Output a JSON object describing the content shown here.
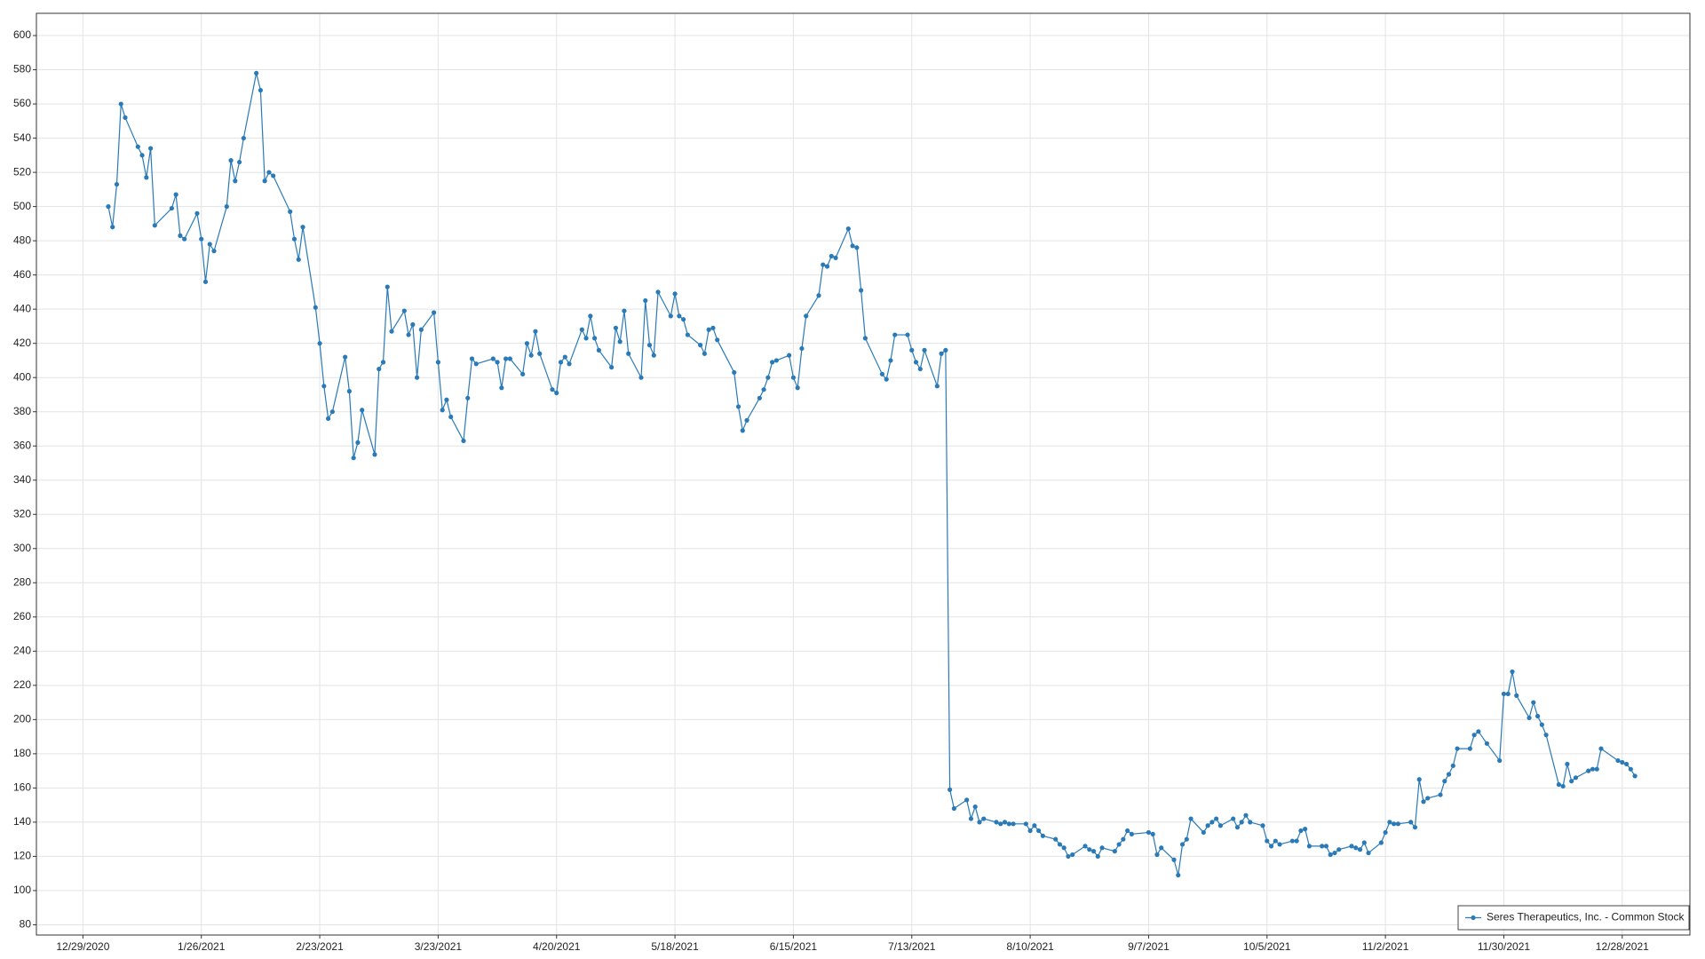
{
  "chart_data": {
    "type": "line",
    "x": [
      "2021-01-04",
      "2021-01-05",
      "2021-01-06",
      "2021-01-07",
      "2021-01-08",
      "2021-01-11",
      "2021-01-12",
      "2021-01-13",
      "2021-01-14",
      "2021-01-15",
      "2021-01-19",
      "2021-01-20",
      "2021-01-21",
      "2021-01-22",
      "2021-01-25",
      "2021-01-26",
      "2021-01-27",
      "2021-01-28",
      "2021-01-29",
      "2021-02-01",
      "2021-02-02",
      "2021-02-03",
      "2021-02-04",
      "2021-02-05",
      "2021-02-08",
      "2021-02-09",
      "2021-02-10",
      "2021-02-11",
      "2021-02-12",
      "2021-02-16",
      "2021-02-17",
      "2021-02-18",
      "2021-02-19",
      "2021-02-22",
      "2021-02-23",
      "2021-02-24",
      "2021-02-25",
      "2021-02-26",
      "2021-03-01",
      "2021-03-02",
      "2021-03-03",
      "2021-03-04",
      "2021-03-05",
      "2021-03-08",
      "2021-03-09",
      "2021-03-10",
      "2021-03-11",
      "2021-03-12",
      "2021-03-15",
      "2021-03-16",
      "2021-03-17",
      "2021-03-18",
      "2021-03-19",
      "2021-03-22",
      "2021-03-23",
      "2021-03-24",
      "2021-03-25",
      "2021-03-26",
      "2021-03-29",
      "2021-03-30",
      "2021-03-31",
      "2021-04-01",
      "2021-04-05",
      "2021-04-06",
      "2021-04-07",
      "2021-04-08",
      "2021-04-09",
      "2021-04-12",
      "2021-04-13",
      "2021-04-14",
      "2021-04-15",
      "2021-04-16",
      "2021-04-19",
      "2021-04-20",
      "2021-04-21",
      "2021-04-22",
      "2021-04-23",
      "2021-04-26",
      "2021-04-27",
      "2021-04-28",
      "2021-04-29",
      "2021-04-30",
      "2021-05-03",
      "2021-05-04",
      "2021-05-05",
      "2021-05-06",
      "2021-05-07",
      "2021-05-10",
      "2021-05-11",
      "2021-05-12",
      "2021-05-13",
      "2021-05-14",
      "2021-05-17",
      "2021-05-18",
      "2021-05-19",
      "2021-05-20",
      "2021-05-21",
      "2021-05-24",
      "2021-05-25",
      "2021-05-26",
      "2021-05-27",
      "2021-05-28",
      "2021-06-01",
      "2021-06-02",
      "2021-06-03",
      "2021-06-04",
      "2021-06-07",
      "2021-06-08",
      "2021-06-09",
      "2021-06-10",
      "2021-06-11",
      "2021-06-14",
      "2021-06-15",
      "2021-06-16",
      "2021-06-17",
      "2021-06-18",
      "2021-06-21",
      "2021-06-22",
      "2021-06-23",
      "2021-06-24",
      "2021-06-25",
      "2021-06-28",
      "2021-06-29",
      "2021-06-30",
      "2021-07-01",
      "2021-07-02",
      "2021-07-06",
      "2021-07-07",
      "2021-07-08",
      "2021-07-09",
      "2021-07-12",
      "2021-07-13",
      "2021-07-14",
      "2021-07-15",
      "2021-07-16",
      "2021-07-19",
      "2021-07-20",
      "2021-07-21",
      "2021-07-22",
      "2021-07-23",
      "2021-07-26",
      "2021-07-27",
      "2021-07-28",
      "2021-07-29",
      "2021-07-30",
      "2021-08-02",
      "2021-08-03",
      "2021-08-04",
      "2021-08-05",
      "2021-08-06",
      "2021-08-09",
      "2021-08-10",
      "2021-08-11",
      "2021-08-12",
      "2021-08-13",
      "2021-08-16",
      "2021-08-17",
      "2021-08-18",
      "2021-08-19",
      "2021-08-20",
      "2021-08-23",
      "2021-08-24",
      "2021-08-25",
      "2021-08-26",
      "2021-08-27",
      "2021-08-30",
      "2021-08-31",
      "2021-09-01",
      "2021-09-02",
      "2021-09-03",
      "2021-09-07",
      "2021-09-08",
      "2021-09-09",
      "2021-09-10",
      "2021-09-13",
      "2021-09-14",
      "2021-09-15",
      "2021-09-16",
      "2021-09-17",
      "2021-09-20",
      "2021-09-21",
      "2021-09-22",
      "2021-09-23",
      "2021-09-24",
      "2021-09-27",
      "2021-09-28",
      "2021-09-29",
      "2021-09-30",
      "2021-10-01",
      "2021-10-04",
      "2021-10-05",
      "2021-10-06",
      "2021-10-07",
      "2021-10-08",
      "2021-10-11",
      "2021-10-12",
      "2021-10-13",
      "2021-10-14",
      "2021-10-15",
      "2021-10-18",
      "2021-10-19",
      "2021-10-20",
      "2021-10-21",
      "2021-10-22",
      "2021-10-25",
      "2021-10-26",
      "2021-10-27",
      "2021-10-28",
      "2021-10-29",
      "2021-11-01",
      "2021-11-02",
      "2021-11-03",
      "2021-11-04",
      "2021-11-05",
      "2021-11-08",
      "2021-11-09",
      "2021-11-10",
      "2021-11-11",
      "2021-11-12",
      "2021-11-15",
      "2021-11-16",
      "2021-11-17",
      "2021-11-18",
      "2021-11-19",
      "2021-11-22",
      "2021-11-23",
      "2021-11-24",
      "2021-11-26",
      "2021-11-29",
      "2021-11-30",
      "2021-12-01",
      "2021-12-02",
      "2021-12-03",
      "2021-12-06",
      "2021-12-07",
      "2021-12-08",
      "2021-12-09",
      "2021-12-10",
      "2021-12-13",
      "2021-12-14",
      "2021-12-15",
      "2021-12-16",
      "2021-12-17",
      "2021-12-20",
      "2021-12-21",
      "2021-12-22",
      "2021-12-23",
      "2021-12-27",
      "2021-12-28",
      "2021-12-29",
      "2021-12-30",
      "2021-12-31"
    ],
    "series": [
      {
        "name": "Seres Therapeutics, Inc. - Common Stock",
        "color": "#2a7ab7",
        "values": [
          500,
          488,
          513,
          560,
          552,
          535,
          530,
          517,
          534,
          489,
          499,
          507,
          483,
          481,
          496,
          481,
          456,
          478,
          474,
          500,
          527,
          515,
          526,
          540,
          578,
          568,
          515,
          520,
          518,
          497,
          481,
          469,
          488,
          441,
          420,
          395,
          376,
          380,
          412,
          392,
          353,
          362,
          381,
          355,
          405,
          409,
          453,
          427,
          439,
          425,
          431,
          400,
          428,
          438,
          409,
          381,
          387,
          377,
          363,
          388,
          411,
          408,
          411,
          409,
          394,
          411,
          411,
          402,
          420,
          413,
          427,
          414,
          393,
          391,
          409,
          412,
          408,
          428,
          423,
          436,
          423,
          416,
          406,
          429,
          421,
          439,
          414,
          400,
          445,
          419,
          413,
          450,
          436,
          449,
          436,
          434,
          425,
          419,
          414,
          428,
          429,
          422,
          403,
          383,
          369,
          375,
          388,
          393,
          400,
          409,
          410,
          413,
          400,
          394,
          417,
          436,
          448,
          466,
          465,
          471,
          470,
          487,
          477,
          476,
          451,
          423,
          402,
          399,
          410,
          425,
          425,
          416,
          409,
          405,
          416,
          395,
          414,
          416,
          159,
          148,
          153,
          142,
          149,
          140,
          142,
          140,
          139,
          140,
          139,
          139,
          139,
          135,
          138,
          135,
          132,
          130,
          127,
          125,
          120,
          121,
          126,
          124,
          123,
          120,
          125,
          123,
          127,
          130,
          135,
          133,
          134,
          133,
          121,
          125,
          118,
          109,
          127,
          130,
          142,
          134,
          138,
          140,
          142,
          138,
          142,
          137,
          140,
          144,
          140,
          138,
          129,
          126,
          129,
          127,
          129,
          129,
          135,
          136,
          126,
          126,
          126,
          121,
          122,
          124,
          126,
          125,
          124,
          128,
          122,
          128,
          134,
          140,
          139,
          139,
          140,
          137,
          165,
          152,
          154,
          156,
          164,
          168,
          173,
          183,
          183,
          191,
          193,
          186,
          176,
          215,
          215,
          228,
          214,
          201,
          210,
          202,
          197,
          191,
          162,
          161,
          174,
          164,
          166,
          170,
          171,
          171,
          183,
          176,
          175,
          174,
          171,
          167
        ]
      }
    ],
    "xlim": [
      "2020-12-18",
      "2022-01-13"
    ],
    "xticks": [
      {
        "value": "2020-12-29",
        "label": "12/29/2020"
      },
      {
        "value": "2021-01-26",
        "label": "1/26/2021"
      },
      {
        "value": "2021-02-23",
        "label": "2/23/2021"
      },
      {
        "value": "2021-03-23",
        "label": "3/23/2021"
      },
      {
        "value": "2021-04-20",
        "label": "4/20/2021"
      },
      {
        "value": "2021-05-18",
        "label": "5/18/2021"
      },
      {
        "value": "2021-06-15",
        "label": "6/15/2021"
      },
      {
        "value": "2021-07-13",
        "label": "7/13/2021"
      },
      {
        "value": "2021-08-10",
        "label": "8/10/2021"
      },
      {
        "value": "2021-09-07",
        "label": "9/7/2021"
      },
      {
        "value": "2021-10-05",
        "label": "10/5/2021"
      },
      {
        "value": "2021-11-02",
        "label": "11/2/2021"
      },
      {
        "value": "2021-11-30",
        "label": "11/30/2021"
      },
      {
        "value": "2021-12-28",
        "label": "12/28/2021"
      }
    ],
    "ylim": [
      74,
      613
    ],
    "yticks": [
      80,
      100,
      120,
      140,
      160,
      180,
      200,
      220,
      240,
      260,
      280,
      300,
      320,
      340,
      360,
      380,
      400,
      420,
      440,
      460,
      480,
      500,
      520,
      540,
      560,
      580,
      600
    ],
    "grid": true,
    "markers": true,
    "legend": "lower right"
  }
}
